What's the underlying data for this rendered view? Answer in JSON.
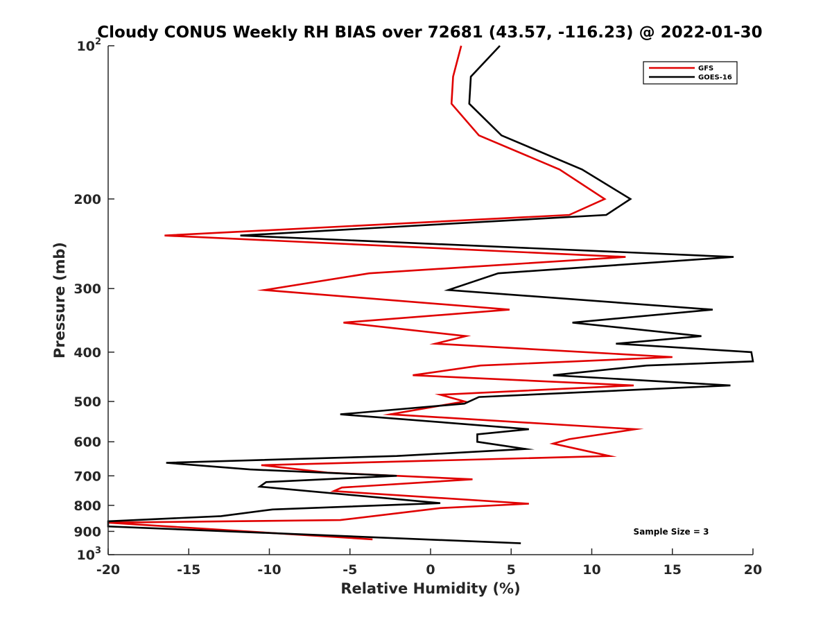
{
  "chart_data": {
    "type": "line",
    "title": "Cloudy CONUS Weekly RH BIAS over 72681 (43.57, -116.23) @ 2022-01-30",
    "xlabel": "Relative Humidity (%)",
    "ylabel": "Pressure (mb)",
    "xlim": [
      -20,
      20
    ],
    "ylim": [
      100,
      1000
    ],
    "y_scale": "log",
    "y_reversed": true,
    "xticks": [
      -20,
      -15,
      -10,
      -5,
      0,
      5,
      10,
      15,
      20
    ],
    "xtick_labels": [
      "-20",
      "-15",
      "-10",
      "-5",
      "0",
      "5",
      "10",
      "15",
      "20"
    ],
    "yticks": [
      100,
      200,
      300,
      400,
      500,
      600,
      700,
      800,
      900,
      1000
    ],
    "ytick_labels": [
      {
        "base": "10",
        "exp": "2"
      },
      {
        "base": "200",
        "exp": ""
      },
      {
        "base": "300",
        "exp": ""
      },
      {
        "base": "400",
        "exp": ""
      },
      {
        "base": "500",
        "exp": ""
      },
      {
        "base": "600",
        "exp": ""
      },
      {
        "base": "700",
        "exp": ""
      },
      {
        "base": "800",
        "exp": ""
      },
      {
        "base": "900",
        "exp": ""
      },
      {
        "base": "10",
        "exp": "3"
      }
    ],
    "grid": false,
    "legend_position": "top-right",
    "annotation": "Sample Size = 3",
    "series": [
      {
        "name": "GFS",
        "color": "#e00000",
        "points": [
          [
            1.9,
            100
          ],
          [
            1.4,
            115
          ],
          [
            1.3,
            130
          ],
          [
            3.0,
            150
          ],
          [
            8.0,
            175
          ],
          [
            10.8,
            200
          ],
          [
            8.6,
            215
          ],
          [
            -16.5,
            236
          ],
          [
            12.1,
            260
          ],
          [
            -3.8,
            280
          ],
          [
            -10.3,
            302
          ],
          [
            4.9,
            330
          ],
          [
            -5.4,
            350
          ],
          [
            2.2,
            372
          ],
          [
            0.3,
            385
          ],
          [
            15.0,
            409
          ],
          [
            3.1,
            425
          ],
          [
            -1.1,
            444
          ],
          [
            12.6,
            465
          ],
          [
            0.6,
            485
          ],
          [
            2.1,
            500
          ],
          [
            -2.5,
            530
          ],
          [
            12.7,
            567
          ],
          [
            8.6,
            593
          ],
          [
            7.6,
            605
          ],
          [
            11.1,
            640
          ],
          [
            -10.5,
            667
          ],
          [
            -6.4,
            690
          ],
          [
            2.6,
            711
          ],
          [
            -5.5,
            738
          ],
          [
            -6.0,
            750
          ],
          [
            6.1,
            794
          ],
          [
            0.6,
            810
          ],
          [
            -5.6,
            855
          ],
          [
            -20,
            865
          ],
          [
            -3.6,
            933
          ]
        ]
      },
      {
        "name": "GOES-16",
        "color": "#000000",
        "points": [
          [
            4.3,
            100
          ],
          [
            2.5,
            115
          ],
          [
            2.4,
            130
          ],
          [
            4.4,
            150
          ],
          [
            9.4,
            175
          ],
          [
            12.4,
            200
          ],
          [
            10.9,
            215
          ],
          [
            -11.8,
            236
          ],
          [
            18.8,
            260
          ],
          [
            4.2,
            280
          ],
          [
            1.1,
            302
          ],
          [
            17.5,
            330
          ],
          [
            8.8,
            350
          ],
          [
            16.8,
            372
          ],
          [
            11.5,
            385
          ],
          [
            19.9,
            400
          ],
          [
            20,
            417
          ],
          [
            13.4,
            425
          ],
          [
            7.6,
            444
          ],
          [
            18.6,
            465
          ],
          [
            3.0,
            490
          ],
          [
            2.1,
            505
          ],
          [
            -5.6,
            530
          ],
          [
            0.9,
            550
          ],
          [
            6.1,
            567
          ],
          [
            2.9,
            580
          ],
          [
            2.9,
            600
          ],
          [
            5.9,
            620
          ],
          [
            -2.1,
            640
          ],
          [
            -16.4,
            660
          ],
          [
            -11.2,
            680
          ],
          [
            -2.1,
            700
          ],
          [
            -10.2,
            720
          ],
          [
            -10.6,
            735
          ],
          [
            0.6,
            792
          ],
          [
            -9.8,
            815
          ],
          [
            -13.0,
            840
          ],
          [
            -20,
            860
          ],
          [
            -20,
            880
          ],
          [
            5.6,
            950
          ]
        ]
      }
    ]
  }
}
